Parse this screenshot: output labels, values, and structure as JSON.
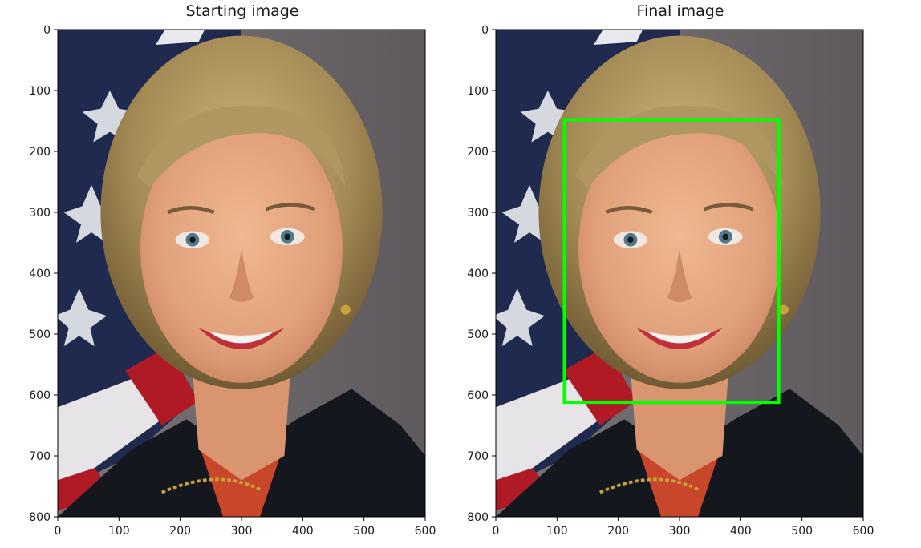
{
  "figure": {
    "panels": [
      {
        "id": "starting",
        "title": "Starting image",
        "xticks": [
          0,
          100,
          200,
          300,
          400,
          500,
          600
        ],
        "yticks": [
          0,
          100,
          200,
          300,
          400,
          500,
          600,
          700,
          800
        ],
        "xlim": [
          0,
          600
        ],
        "ylim": [
          800,
          0
        ],
        "face_box": null
      },
      {
        "id": "final",
        "title": "Final image",
        "xticks": [
          0,
          100,
          200,
          300,
          400,
          500,
          600
        ],
        "yticks": [
          0,
          100,
          200,
          300,
          400,
          500,
          600,
          700,
          800
        ],
        "xlim": [
          0,
          600
        ],
        "ylim": [
          800,
          0
        ],
        "face_box": {
          "x0": 112,
          "y0": 148,
          "x1": 462,
          "y1": 612,
          "color": "#00ff00"
        }
      }
    ],
    "colors": {
      "background_gray": "#6f6a6d",
      "flag_navy": "#1f2a4e",
      "flag_red": "#b01a25",
      "hair": "#a48a55",
      "skin": "#e3a27c",
      "jacket": "#15171e",
      "box": "#00ff00"
    }
  }
}
